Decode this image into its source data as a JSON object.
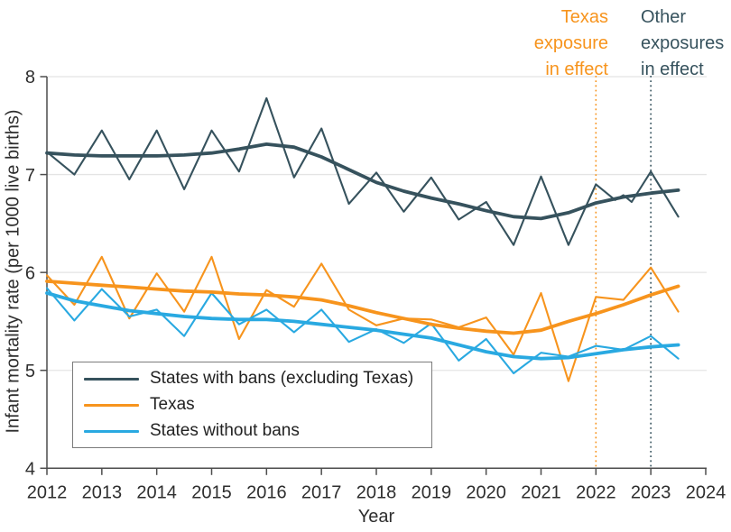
{
  "figure": {
    "y_axis_label": "Infant mortality rate (per 1000 live births)",
    "x_axis_label": "Year"
  },
  "colors": {
    "bans": "#36525d",
    "texas": "#f7941d",
    "no_bans": "#29a9e1",
    "axis": "#4d4d4d",
    "grid": "#e4e4e4",
    "tick_text": "#2e2e2e",
    "legend_border": "#7b7b7b"
  },
  "legend": {
    "entries": [
      {
        "label": "States with bans (excluding Texas)",
        "color_key": "bans"
      },
      {
        "label": "Texas",
        "color_key": "texas"
      },
      {
        "label": "States without bans",
        "color_key": "no_bans"
      }
    ]
  },
  "annotations": [
    {
      "id": "texas-exposure",
      "lines": [
        "Texas",
        "exposure",
        "in effect"
      ],
      "color_key": "texas",
      "align": "right",
      "x": 2022
    },
    {
      "id": "other-exposures",
      "lines": [
        "Other",
        "exposures",
        "in effect"
      ],
      "color_key": "bans",
      "align": "left",
      "x": 2023
    }
  ],
  "chart_data": {
    "type": "line",
    "title": "",
    "xlabel": "Year",
    "ylabel": "Infant mortality rate (per 1000 live births)",
    "xlim": [
      2012,
      2024
    ],
    "ylim": [
      4,
      8
    ],
    "x_ticks": [
      2012,
      2013,
      2014,
      2015,
      2016,
      2017,
      2018,
      2019,
      2020,
      2021,
      2022,
      2023,
      2024
    ],
    "y_ticks": [
      4,
      5,
      6,
      7,
      8
    ],
    "grid": "horizontal gridlines at 5, 6, 7, 8",
    "legend_position": "inside bottom-left",
    "vlines": [
      {
        "x": 2022,
        "label": "Texas exposure in effect",
        "color_key": "texas",
        "style": "dotted"
      },
      {
        "x": 2023,
        "label": "Other exposures in effect",
        "color_key": "bans",
        "style": "dotted"
      }
    ],
    "series": [
      {
        "name": "States with bans (excluding Texas) — observed",
        "color_key": "bans",
        "role": "observed",
        "points": [
          [
            2012,
            7.23
          ],
          [
            2012.5,
            7.0
          ],
          [
            2013,
            7.45
          ],
          [
            2013.5,
            6.95
          ],
          [
            2014,
            7.45
          ],
          [
            2014.5,
            6.85
          ],
          [
            2015,
            7.45
          ],
          [
            2015.5,
            7.03
          ],
          [
            2016,
            7.78
          ],
          [
            2016.5,
            6.97
          ],
          [
            2017,
            7.47
          ],
          [
            2017.5,
            6.7
          ],
          [
            2018,
            7.02
          ],
          [
            2018.5,
            6.62
          ],
          [
            2019,
            6.97
          ],
          [
            2019.5,
            6.54
          ],
          [
            2020,
            6.72
          ],
          [
            2020.5,
            6.28
          ],
          [
            2021,
            6.98
          ],
          [
            2021.5,
            6.28
          ],
          [
            2022,
            6.9
          ],
          [
            2022.35,
            6.74
          ],
          [
            2022.5,
            6.79
          ],
          [
            2022.65,
            6.72
          ],
          [
            2023,
            7.03
          ],
          [
            2023.5,
            6.57
          ]
        ]
      },
      {
        "name": "States with bans (excluding Texas) — trend",
        "color_key": "bans",
        "role": "trend",
        "points": [
          [
            2012,
            7.22
          ],
          [
            2012.5,
            7.2
          ],
          [
            2013,
            7.19
          ],
          [
            2013.5,
            7.19
          ],
          [
            2014,
            7.19
          ],
          [
            2014.5,
            7.2
          ],
          [
            2015,
            7.22
          ],
          [
            2015.5,
            7.26
          ],
          [
            2016,
            7.31
          ],
          [
            2016.5,
            7.28
          ],
          [
            2017,
            7.18
          ],
          [
            2017.5,
            7.05
          ],
          [
            2018,
            6.92
          ],
          [
            2018.5,
            6.83
          ],
          [
            2019,
            6.76
          ],
          [
            2019.5,
            6.7
          ],
          [
            2020,
            6.63
          ],
          [
            2020.5,
            6.57
          ],
          [
            2021,
            6.55
          ],
          [
            2021.5,
            6.61
          ],
          [
            2022,
            6.71
          ],
          [
            2022.5,
            6.77
          ],
          [
            2023,
            6.81
          ],
          [
            2023.5,
            6.84
          ]
        ]
      },
      {
        "name": "Texas — observed",
        "color_key": "texas",
        "role": "observed",
        "points": [
          [
            2012,
            5.97
          ],
          [
            2012.5,
            5.67
          ],
          [
            2013,
            6.16
          ],
          [
            2013.5,
            5.53
          ],
          [
            2014,
            5.99
          ],
          [
            2014.5,
            5.6
          ],
          [
            2015,
            6.16
          ],
          [
            2015.5,
            5.32
          ],
          [
            2016,
            5.82
          ],
          [
            2016.5,
            5.65
          ],
          [
            2017,
            6.09
          ],
          [
            2017.5,
            5.62
          ],
          [
            2018,
            5.46
          ],
          [
            2018.5,
            5.53
          ],
          [
            2019,
            5.52
          ],
          [
            2019.5,
            5.44
          ],
          [
            2020,
            5.54
          ],
          [
            2020.5,
            5.16
          ],
          [
            2021,
            5.79
          ],
          [
            2021.5,
            4.89
          ],
          [
            2022,
            5.75
          ],
          [
            2022.5,
            5.72
          ],
          [
            2023,
            6.05
          ],
          [
            2023.5,
            5.6
          ]
        ]
      },
      {
        "name": "Texas — trend",
        "color_key": "texas",
        "role": "trend",
        "points": [
          [
            2012,
            5.91
          ],
          [
            2012.5,
            5.89
          ],
          [
            2013,
            5.87
          ],
          [
            2013.5,
            5.85
          ],
          [
            2014,
            5.83
          ],
          [
            2014.5,
            5.81
          ],
          [
            2015,
            5.8
          ],
          [
            2015.5,
            5.78
          ],
          [
            2016,
            5.77
          ],
          [
            2016.5,
            5.75
          ],
          [
            2017,
            5.72
          ],
          [
            2017.5,
            5.66
          ],
          [
            2018,
            5.59
          ],
          [
            2018.5,
            5.53
          ],
          [
            2019,
            5.47
          ],
          [
            2019.5,
            5.43
          ],
          [
            2020,
            5.4
          ],
          [
            2020.5,
            5.38
          ],
          [
            2021,
            5.41
          ],
          [
            2021.5,
            5.5
          ],
          [
            2022,
            5.58
          ],
          [
            2022.5,
            5.67
          ],
          [
            2023,
            5.77
          ],
          [
            2023.5,
            5.86
          ]
        ]
      },
      {
        "name": "States without bans — observed",
        "color_key": "no_bans",
        "role": "observed",
        "points": [
          [
            2012,
            5.84
          ],
          [
            2012.5,
            5.51
          ],
          [
            2013,
            5.83
          ],
          [
            2013.5,
            5.55
          ],
          [
            2014,
            5.62
          ],
          [
            2014.5,
            5.35
          ],
          [
            2015,
            5.79
          ],
          [
            2015.5,
            5.47
          ],
          [
            2016,
            5.62
          ],
          [
            2016.5,
            5.39
          ],
          [
            2017,
            5.62
          ],
          [
            2017.5,
            5.29
          ],
          [
            2018,
            5.42
          ],
          [
            2018.5,
            5.28
          ],
          [
            2019,
            5.48
          ],
          [
            2019.5,
            5.1
          ],
          [
            2020,
            5.32
          ],
          [
            2020.5,
            4.97
          ],
          [
            2021,
            5.18
          ],
          [
            2021.5,
            5.14
          ],
          [
            2022,
            5.25
          ],
          [
            2022.5,
            5.21
          ],
          [
            2023,
            5.35
          ],
          [
            2023.5,
            5.12
          ]
        ]
      },
      {
        "name": "States without bans — trend",
        "color_key": "no_bans",
        "role": "trend",
        "points": [
          [
            2012,
            5.79
          ],
          [
            2012.5,
            5.71
          ],
          [
            2013,
            5.66
          ],
          [
            2013.5,
            5.61
          ],
          [
            2014,
            5.58
          ],
          [
            2014.5,
            5.55
          ],
          [
            2015,
            5.53
          ],
          [
            2015.5,
            5.52
          ],
          [
            2016,
            5.52
          ],
          [
            2016.5,
            5.5
          ],
          [
            2017,
            5.47
          ],
          [
            2017.5,
            5.44
          ],
          [
            2018,
            5.41
          ],
          [
            2018.5,
            5.37
          ],
          [
            2019,
            5.33
          ],
          [
            2019.5,
            5.26
          ],
          [
            2020,
            5.19
          ],
          [
            2020.5,
            5.14
          ],
          [
            2021,
            5.12
          ],
          [
            2021.5,
            5.13
          ],
          [
            2022,
            5.17
          ],
          [
            2022.5,
            5.21
          ],
          [
            2023,
            5.24
          ],
          [
            2023.5,
            5.26
          ]
        ]
      }
    ]
  }
}
